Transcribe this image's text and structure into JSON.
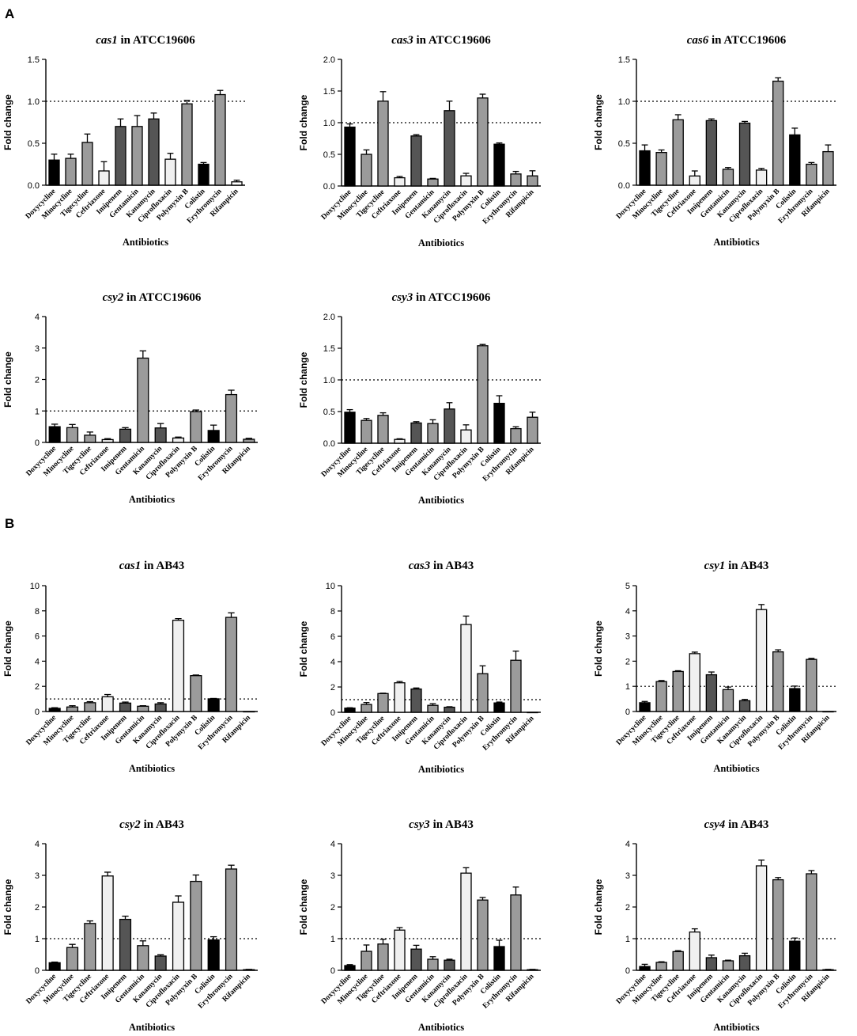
{
  "figure": {
    "panels": [
      {
        "label": "A"
      },
      {
        "label": "B"
      }
    ]
  },
  "colors": {
    "black": "#000000",
    "dark": "#555555",
    "mid": "#9b9b9b",
    "light": "#f0f0f0",
    "white": "#ffffff"
  },
  "chart_data": [
    {
      "type": "bar",
      "panel": "A",
      "gene": "cas1",
      "strain": "ATCC19606",
      "title": "cas1 in ATCC19606",
      "xlabel": "Antibiotics",
      "ylabel": "Fold change",
      "ylim": [
        0,
        1.5
      ],
      "yticks": [
        "0.0",
        "0.5",
        "1.0",
        "1.5"
      ],
      "reference_line": 1.0,
      "categories": [
        "Doxycycline",
        "Minocycline",
        "Tigecycline",
        "Ceftriaxone",
        "Imipenem",
        "Gentamicin",
        "Kanamycin",
        "Ciprofloxacin",
        "Polymyxin B",
        "Colistin",
        "Erythromycin",
        "Rifampicin"
      ],
      "values": [
        0.3,
        0.32,
        0.51,
        0.17,
        0.7,
        0.7,
        0.79,
        0.31,
        0.97,
        0.25,
        1.08,
        0.04
      ],
      "errors": [
        0.07,
        0.05,
        0.1,
        0.11,
        0.09,
        0.13,
        0.07,
        0.07,
        0.04,
        0.02,
        0.05,
        0.02
      ],
      "fills": [
        "black",
        "mid",
        "mid",
        "light",
        "dark",
        "mid",
        "dark",
        "light",
        "mid",
        "black",
        "mid",
        "white"
      ]
    },
    {
      "type": "bar",
      "panel": "A",
      "gene": "cas3",
      "strain": "ATCC19606",
      "title": "cas3 in ATCC19606",
      "xlabel": "Antibiotics",
      "ylabel": "Fold change",
      "ylim": [
        0,
        2.0
      ],
      "yticks": [
        "0.0",
        "0.5",
        "1.0",
        "1.5",
        "2.0"
      ],
      "reference_line": 1.0,
      "categories": [
        "Doxycycline",
        "Minocycline",
        "Tigecycline",
        "Ceftriaxone",
        "Imipenem",
        "Gentamicin",
        "Kanamycin",
        "Ciprofloxacin",
        "Polymyxin B",
        "Colistin",
        "Erythromycin",
        "Rifampicin"
      ],
      "values": [
        0.93,
        0.5,
        1.34,
        0.13,
        0.79,
        0.11,
        1.19,
        0.16,
        1.39,
        0.66,
        0.19,
        0.16
      ],
      "errors": [
        0.05,
        0.07,
        0.15,
        0.02,
        0.02,
        0.01,
        0.15,
        0.04,
        0.06,
        0.02,
        0.04,
        0.08
      ],
      "fills": [
        "black",
        "mid",
        "mid",
        "light",
        "dark",
        "mid",
        "dark",
        "light",
        "mid",
        "black",
        "mid",
        "mid"
      ]
    },
    {
      "type": "bar",
      "panel": "A",
      "gene": "cas6",
      "strain": "ATCC19606",
      "title": "cas6 in ATCC19606",
      "xlabel": "Antibiotics",
      "ylabel": "Fold change",
      "ylim": [
        0,
        1.5
      ],
      "yticks": [
        "0.0",
        "0.5",
        "1.0",
        "1.5"
      ],
      "reference_line": 1.0,
      "categories": [
        "Doxycycline",
        "Minocycline",
        "Tigecycline",
        "Ceftriaxone",
        "Imipenem",
        "Gentamicin",
        "Kanamycin",
        "Ciprofloxacin",
        "Polymyxin B",
        "Colistin",
        "Erythromycin",
        "Rifampicin"
      ],
      "values": [
        0.41,
        0.39,
        0.78,
        0.11,
        0.77,
        0.19,
        0.74,
        0.18,
        1.24,
        0.6,
        0.25,
        0.4
      ],
      "errors": [
        0.07,
        0.03,
        0.06,
        0.06,
        0.02,
        0.02,
        0.02,
        0.02,
        0.04,
        0.08,
        0.02,
        0.08
      ],
      "fills": [
        "black",
        "mid",
        "mid",
        "light",
        "dark",
        "mid",
        "dark",
        "light",
        "mid",
        "black",
        "mid",
        "mid"
      ]
    },
    {
      "type": "bar",
      "panel": "A",
      "gene": "csy2",
      "strain": "ATCC19606",
      "title": "csy2 in ATCC19606",
      "xlabel": "Antibiotics",
      "ylabel": "Fold change",
      "ylim": [
        0,
        4
      ],
      "yticks": [
        "0",
        "1",
        "2",
        "3",
        "4"
      ],
      "reference_line": 1.0,
      "categories": [
        "Doxycycline",
        "Minocycline",
        "Tigecycline",
        "Ceftriaxone",
        "Imipenem",
        "Gentamicin",
        "Kanamycin",
        "Ciprofloxacin",
        "Polymyxin B",
        "Colistin",
        "Erythromycin",
        "Rifampicin"
      ],
      "values": [
        0.5,
        0.47,
        0.23,
        0.09,
        0.42,
        2.68,
        0.46,
        0.14,
        0.98,
        0.38,
        1.52,
        0.1
      ],
      "errors": [
        0.08,
        0.1,
        0.1,
        0.03,
        0.05,
        0.23,
        0.14,
        0.03,
        0.05,
        0.17,
        0.14,
        0.03
      ],
      "fills": [
        "black",
        "mid",
        "mid",
        "light",
        "dark",
        "mid",
        "dark",
        "light",
        "mid",
        "black",
        "mid",
        "mid"
      ]
    },
    {
      "type": "bar",
      "panel": "A",
      "gene": "csy3",
      "strain": "ATCC19606",
      "title": "csy3 in ATCC19606",
      "xlabel": "Antibiotics",
      "ylabel": "Fold change",
      "ylim": [
        0,
        2.0
      ],
      "yticks": [
        "0.0",
        "0.5",
        "1.0",
        "1.5",
        "2.0"
      ],
      "reference_line": 1.0,
      "categories": [
        "Doxycycline",
        "Minocycline",
        "Tigecycline",
        "Ceftriaxone",
        "Imipenem",
        "Gentamicin",
        "Kanamycin",
        "Ciprofloxacin",
        "Polymyxin B",
        "Colistin",
        "Erythromycin",
        "Rifampicin"
      ],
      "values": [
        0.49,
        0.36,
        0.44,
        0.06,
        0.32,
        0.31,
        0.54,
        0.21,
        1.54,
        0.63,
        0.23,
        0.41
      ],
      "errors": [
        0.04,
        0.03,
        0.04,
        0.01,
        0.02,
        0.06,
        0.1,
        0.08,
        0.02,
        0.12,
        0.03,
        0.08
      ],
      "fills": [
        "black",
        "mid",
        "mid",
        "light",
        "dark",
        "mid",
        "dark",
        "light",
        "mid",
        "black",
        "mid",
        "mid"
      ]
    },
    {
      "type": "bar",
      "panel": "B",
      "gene": "cas1",
      "strain": "AB43",
      "title": "cas1 in AB43",
      "xlabel": "Antibiotics",
      "ylabel": "Fold change",
      "ylim": [
        0,
        10
      ],
      "yticks": [
        "0",
        "2",
        "4",
        "6",
        "8",
        "10"
      ],
      "reference_line": 1.0,
      "categories": [
        "Doxycycline",
        "Minocycline",
        "Tigecycline",
        "Ceftriaxone",
        "Imipenem",
        "Gentamicin",
        "Kanamycin",
        "Ciprofloxacin",
        "Polymyxin B",
        "Colistin",
        "Erythromycin",
        "Rifampicin"
      ],
      "values": [
        0.25,
        0.36,
        0.7,
        1.17,
        0.67,
        0.42,
        0.6,
        7.25,
        2.85,
        1.01,
        7.48,
        0.0
      ],
      "errors": [
        0.05,
        0.1,
        0.08,
        0.18,
        0.08,
        0.04,
        0.1,
        0.13,
        0.05,
        0.03,
        0.36,
        0.0
      ],
      "fills": [
        "black",
        "mid",
        "mid",
        "light",
        "dark",
        "mid",
        "dark",
        "light",
        "mid",
        "black",
        "mid",
        "white"
      ]
    },
    {
      "type": "bar",
      "panel": "B",
      "gene": "cas3",
      "strain": "AB43",
      "title": "cas3 in AB43",
      "xlabel": "Antibiotics",
      "ylabel": "Fold change",
      "ylim": [
        0,
        10
      ],
      "yticks": [
        "0",
        "2",
        "4",
        "6",
        "8",
        "10"
      ],
      "reference_line": 1.0,
      "categories": [
        "Doxycycline",
        "Minocycline",
        "Tigecycline",
        "Ceftriaxone",
        "Imipenem",
        "Gentamicin",
        "Kanamycin",
        "Ciprofloxacin",
        "Polymyxin B",
        "Colistin",
        "Erythromycin",
        "Rifampicin"
      ],
      "values": [
        0.33,
        0.62,
        1.48,
        2.33,
        1.84,
        0.55,
        0.4,
        6.93,
        3.05,
        0.74,
        4.11,
        0.0
      ],
      "errors": [
        0.03,
        0.15,
        0.03,
        0.1,
        0.08,
        0.13,
        0.04,
        0.67,
        0.62,
        0.07,
        0.72,
        0.0
      ],
      "fills": [
        "black",
        "mid",
        "mid",
        "light",
        "dark",
        "mid",
        "dark",
        "light",
        "mid",
        "black",
        "mid",
        "white"
      ]
    },
    {
      "type": "bar",
      "panel": "B",
      "gene": "csy1",
      "strain": "AB43",
      "title": "csy1 in AB43",
      "xlabel": "Antibiotics",
      "ylabel": "Fold change",
      "ylim": [
        0,
        5
      ],
      "yticks": [
        "0",
        "1",
        "2",
        "3",
        "4",
        "5"
      ],
      "reference_line": 1.0,
      "categories": [
        "Doxycycline",
        "Minocycline",
        "Tigecycline",
        "Ceftriaxone",
        "Imipenem",
        "Gentamicin",
        "Kanamycin",
        "Ciprofloxacin",
        "Polymyxin B",
        "Colistin",
        "Erythromycin",
        "Rifampicin"
      ],
      "values": [
        0.35,
        1.19,
        1.59,
        2.3,
        1.46,
        0.87,
        0.43,
        4.05,
        2.37,
        0.91,
        2.07,
        0.0
      ],
      "errors": [
        0.05,
        0.04,
        0.03,
        0.06,
        0.11,
        0.1,
        0.05,
        0.2,
        0.08,
        0.1,
        0.04,
        0.0
      ],
      "fills": [
        "black",
        "mid",
        "mid",
        "light",
        "dark",
        "mid",
        "dark",
        "light",
        "mid",
        "black",
        "mid",
        "white"
      ]
    },
    {
      "type": "bar",
      "panel": "B",
      "gene": "csy2",
      "strain": "AB43",
      "title": "csy2 in AB43",
      "xlabel": "Antibiotics",
      "ylabel": "Fold change",
      "ylim": [
        0,
        4
      ],
      "yticks": [
        "0",
        "1",
        "2",
        "3",
        "4"
      ],
      "reference_line": 1.0,
      "categories": [
        "Doxycycline",
        "Minocycline",
        "Tigecycline",
        "Ceftriaxone",
        "Imipenem",
        "Gentamicin",
        "Kanamycin",
        "Ciprofloxacin",
        "Polymyxin B",
        "Colistin",
        "Erythromycin",
        "Rifampicin"
      ],
      "values": [
        0.24,
        0.72,
        1.48,
        2.98,
        1.61,
        0.78,
        0.45,
        2.15,
        2.81,
        0.96,
        3.2,
        0.02
      ],
      "errors": [
        0.02,
        0.1,
        0.08,
        0.12,
        0.1,
        0.15,
        0.04,
        0.2,
        0.2,
        0.1,
        0.12,
        0.01
      ],
      "fills": [
        "black",
        "mid",
        "mid",
        "light",
        "dark",
        "mid",
        "dark",
        "light",
        "mid",
        "black",
        "mid",
        "white"
      ]
    },
    {
      "type": "bar",
      "panel": "B",
      "gene": "csy3",
      "strain": "AB43",
      "title": "csy3 in AB43",
      "xlabel": "Antibiotics",
      "ylabel": "Fold change",
      "ylim": [
        0,
        4
      ],
      "yticks": [
        "0",
        "1",
        "2",
        "3",
        "4"
      ],
      "reference_line": 1.0,
      "categories": [
        "Doxycycline",
        "Minocycline",
        "Tigecycline",
        "Ceftriaxone",
        "Imipenem",
        "Gentamicin",
        "Kanamycin",
        "Ciprofloxacin",
        "Polymyxin B",
        "Colistin",
        "Erythromycin",
        "Rifampicin"
      ],
      "values": [
        0.15,
        0.6,
        0.83,
        1.27,
        0.67,
        0.35,
        0.32,
        3.07,
        2.22,
        0.75,
        2.38,
        0.02
      ],
      "errors": [
        0.03,
        0.2,
        0.15,
        0.08,
        0.12,
        0.08,
        0.03,
        0.17,
        0.08,
        0.2,
        0.25,
        0.01
      ],
      "fills": [
        "black",
        "mid",
        "mid",
        "light",
        "dark",
        "mid",
        "dark",
        "light",
        "mid",
        "black",
        "mid",
        "white"
      ]
    },
    {
      "type": "bar",
      "panel": "B",
      "gene": "csy4",
      "strain": "AB43",
      "title": "csy4 in AB43",
      "xlabel": "Antibiotics",
      "ylabel": "Fold change",
      "ylim": [
        0,
        4
      ],
      "yticks": [
        "0",
        "1",
        "2",
        "3",
        "4"
      ],
      "reference_line": 1.0,
      "categories": [
        "Doxycycline",
        "Minocycline",
        "Tigecycline",
        "Ceftriaxone",
        "Imipenem",
        "Gentamicin",
        "Kanamycin",
        "Ciprofloxacin",
        "Polymyxin B",
        "Colistin",
        "Erythromycin",
        "Rifampicin"
      ],
      "values": [
        0.12,
        0.25,
        0.59,
        1.21,
        0.4,
        0.3,
        0.46,
        3.3,
        2.86,
        0.92,
        3.05,
        0.02
      ],
      "errors": [
        0.07,
        0.02,
        0.03,
        0.1,
        0.08,
        0.02,
        0.08,
        0.18,
        0.07,
        0.1,
        0.1,
        0.01
      ],
      "fills": [
        "black",
        "mid",
        "mid",
        "light",
        "dark",
        "mid",
        "dark",
        "light",
        "mid",
        "black",
        "mid",
        "white"
      ]
    }
  ]
}
